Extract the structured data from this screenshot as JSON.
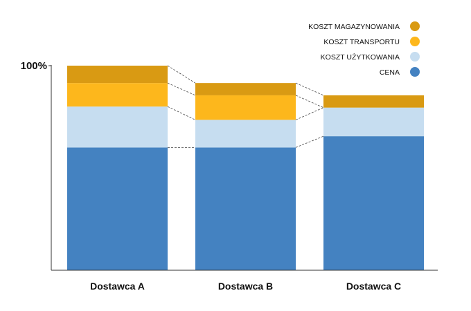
{
  "chart_data": {
    "type": "bar",
    "stacked": true,
    "categories": [
      "Dostawca A",
      "Dostawca B",
      "Dostawca C"
    ],
    "series": [
      {
        "name": "CENA",
        "color": "#4482c1",
        "values": [
          60,
          60,
          65.5
        ]
      },
      {
        "name": "KOSZT UŻYTKOWANIA",
        "color": "#c6ddf0",
        "values": [
          20,
          13.5,
          14
        ]
      },
      {
        "name": "KOSZT TRANSPORTU",
        "color": "#fdb71c",
        "values": [
          11.5,
          12,
          0
        ]
      },
      {
        "name": "KOSZT MAGAZYNOWANIA",
        "color": "#d99a13",
        "values": [
          8.5,
          6,
          6
        ]
      }
    ],
    "ytick_label": "100%",
    "ylim": [
      0,
      100
    ],
    "legend_placement": "top-right",
    "legend_order": [
      "KOSZT MAGAZYNOWANIA",
      "KOSZT TRANSPORTU",
      "KOSZT UŻYTKOWANIA",
      "CENA"
    ],
    "connector_lines": true,
    "grid": false
  }
}
